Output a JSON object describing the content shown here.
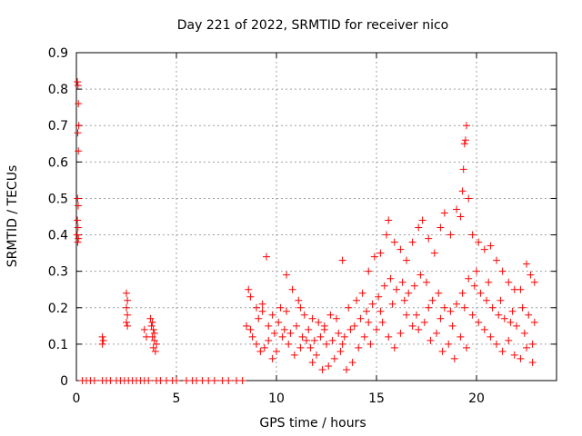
{
  "chart_data": {
    "type": "scatter",
    "title": "Day 221 of 2022, SRMTID for receiver nico",
    "xlabel": "GPS time / hours",
    "ylabel": "SRMTID / TECUs",
    "xlim": [
      0,
      24
    ],
    "ylim": [
      0,
      0.9
    ],
    "xticks": [
      0,
      5,
      10,
      15,
      20
    ],
    "xtick_labels": [
      "0",
      "5",
      "10",
      "15",
      "20"
    ],
    "yticks": [
      0,
      0.1,
      0.2,
      0.3,
      0.4,
      0.5,
      0.6,
      0.7,
      0.8,
      0.9
    ],
    "ytick_labels": [
      "0",
      "0.1",
      "0.2",
      "0.3",
      "0.4",
      "0.5",
      "0.6",
      "0.7",
      "0.8",
      "0.9"
    ],
    "grid": true,
    "marker": "+",
    "series": [
      {
        "name": "SRMTID",
        "color": "#ff0000",
        "points": [
          [
            0.05,
            0.82
          ],
          [
            0.08,
            0.81
          ],
          [
            0.1,
            0.76
          ],
          [
            0.12,
            0.7
          ],
          [
            0.07,
            0.68
          ],
          [
            0.1,
            0.63
          ],
          [
            0.06,
            0.5
          ],
          [
            0.09,
            0.48
          ],
          [
            0.05,
            0.44
          ],
          [
            0.08,
            0.42
          ],
          [
            0.04,
            0.4
          ],
          [
            0.1,
            0.39
          ],
          [
            0.07,
            0.38
          ],
          [
            0.3,
            0
          ],
          [
            0.5,
            0
          ],
          [
            0.7,
            0
          ],
          [
            0.9,
            0
          ],
          [
            1.3,
            0
          ],
          [
            1.5,
            0
          ],
          [
            1.7,
            0
          ],
          [
            2.0,
            0
          ],
          [
            2.2,
            0
          ],
          [
            2.4,
            0
          ],
          [
            2.6,
            0
          ],
          [
            2.8,
            0
          ],
          [
            3.0,
            0
          ],
          [
            3.2,
            0
          ],
          [
            3.4,
            0
          ],
          [
            3.6,
            0
          ],
          [
            4.0,
            0
          ],
          [
            4.2,
            0
          ],
          [
            4.5,
            0
          ],
          [
            4.8,
            0
          ],
          [
            5.0,
            0
          ],
          [
            5.5,
            0
          ],
          [
            5.8,
            0
          ],
          [
            6.0,
            0
          ],
          [
            6.3,
            0
          ],
          [
            6.6,
            0
          ],
          [
            6.9,
            0
          ],
          [
            7.3,
            0
          ],
          [
            7.6,
            0
          ],
          [
            8.0,
            0
          ],
          [
            8.3,
            0
          ],
          [
            1.3,
            0.12
          ],
          [
            1.35,
            0.11
          ],
          [
            1.3,
            0.1
          ],
          [
            2.5,
            0.24
          ],
          [
            2.55,
            0.22
          ],
          [
            2.5,
            0.2
          ],
          [
            2.55,
            0.18
          ],
          [
            2.5,
            0.16
          ],
          [
            2.55,
            0.15
          ],
          [
            3.4,
            0.14
          ],
          [
            3.5,
            0.12
          ],
          [
            3.7,
            0.17
          ],
          [
            3.8,
            0.16
          ],
          [
            3.75,
            0.15
          ],
          [
            3.85,
            0.14
          ],
          [
            3.9,
            0.13
          ],
          [
            3.8,
            0.12
          ],
          [
            3.9,
            0.11
          ],
          [
            4.0,
            0.1
          ],
          [
            3.85,
            0.09
          ],
          [
            3.95,
            0.08
          ],
          [
            8.6,
            0.25
          ],
          [
            8.7,
            0.23
          ],
          [
            9.0,
            0.2
          ],
          [
            9.3,
            0.19
          ],
          [
            9.5,
            0.34
          ],
          [
            9.8,
            0.18
          ],
          [
            10.2,
            0.2
          ],
          [
            10.5,
            0.29
          ],
          [
            10.8,
            0.25
          ],
          [
            11.1,
            0.22
          ],
          [
            11.4,
            0.18
          ],
          [
            11.8,
            0.17
          ],
          [
            12.1,
            0.16
          ],
          [
            12.4,
            0.15
          ],
          [
            12.7,
            0.18
          ],
          [
            13.0,
            0.17
          ],
          [
            13.3,
            0.33
          ],
          [
            13.6,
            0.2
          ],
          [
            14.0,
            0.22
          ],
          [
            14.3,
            0.24
          ],
          [
            14.6,
            0.3
          ],
          [
            14.9,
            0.34
          ],
          [
            15.2,
            0.35
          ],
          [
            15.5,
            0.4
          ],
          [
            15.6,
            0.44
          ],
          [
            15.9,
            0.38
          ],
          [
            16.2,
            0.36
          ],
          [
            16.5,
            0.33
          ],
          [
            16.8,
            0.38
          ],
          [
            17.1,
            0.42
          ],
          [
            17.3,
            0.44
          ],
          [
            17.6,
            0.39
          ],
          [
            17.9,
            0.35
          ],
          [
            18.2,
            0.42
          ],
          [
            18.4,
            0.46
          ],
          [
            18.7,
            0.4
          ],
          [
            19.0,
            0.47
          ],
          [
            19.2,
            0.45
          ],
          [
            19.3,
            0.52
          ],
          [
            19.35,
            0.58
          ],
          [
            19.4,
            0.65
          ],
          [
            19.45,
            0.66
          ],
          [
            19.5,
            0.7
          ],
          [
            19.6,
            0.5
          ],
          [
            19.8,
            0.4
          ],
          [
            20.1,
            0.38
          ],
          [
            20.4,
            0.36
          ],
          [
            20.7,
            0.37
          ],
          [
            21.0,
            0.33
          ],
          [
            21.3,
            0.3
          ],
          [
            21.6,
            0.27
          ],
          [
            21.9,
            0.25
          ],
          [
            22.2,
            0.25
          ],
          [
            22.5,
            0.32
          ],
          [
            22.7,
            0.29
          ],
          [
            22.9,
            0.27
          ],
          [
            8.5,
            0.15
          ],
          [
            8.8,
            0.12
          ],
          [
            9.0,
            0.1
          ],
          [
            9.2,
            0.08
          ],
          [
            9.4,
            0.09
          ],
          [
            9.6,
            0.11
          ],
          [
            9.8,
            0.06
          ],
          [
            10.0,
            0.08
          ],
          [
            10.3,
            0.12
          ],
          [
            10.6,
            0.1
          ],
          [
            10.9,
            0.07
          ],
          [
            11.2,
            0.09
          ],
          [
            11.5,
            0.11
          ],
          [
            11.8,
            0.05
          ],
          [
            12.0,
            0.07
          ],
          [
            12.3,
            0.03
          ],
          [
            12.6,
            0.04
          ],
          [
            12.9,
            0.06
          ],
          [
            13.2,
            0.08
          ],
          [
            13.5,
            0.03
          ],
          [
            13.8,
            0.05
          ],
          [
            14.1,
            0.09
          ],
          [
            14.4,
            0.12
          ],
          [
            14.7,
            0.1
          ],
          [
            15.0,
            0.14
          ],
          [
            15.3,
            0.16
          ],
          [
            15.6,
            0.12
          ],
          [
            15.9,
            0.09
          ],
          [
            16.2,
            0.13
          ],
          [
            16.5,
            0.18
          ],
          [
            16.8,
            0.15
          ],
          [
            17.1,
            0.14
          ],
          [
            17.4,
            0.16
          ],
          [
            17.7,
            0.11
          ],
          [
            18.0,
            0.13
          ],
          [
            18.3,
            0.08
          ],
          [
            18.6,
            0.1
          ],
          [
            18.9,
            0.06
          ],
          [
            19.2,
            0.12
          ],
          [
            19.5,
            0.09
          ],
          [
            19.8,
            0.18
          ],
          [
            20.1,
            0.16
          ],
          [
            20.4,
            0.14
          ],
          [
            20.7,
            0.12
          ],
          [
            21.0,
            0.1
          ],
          [
            21.3,
            0.08
          ],
          [
            21.6,
            0.11
          ],
          [
            21.9,
            0.07
          ],
          [
            22.2,
            0.06
          ],
          [
            22.5,
            0.09
          ],
          [
            22.8,
            0.05
          ],
          [
            8.7,
            0.14
          ],
          [
            9.1,
            0.17
          ],
          [
            9.6,
            0.15
          ],
          [
            10.1,
            0.16
          ],
          [
            10.4,
            0.14
          ],
          [
            10.7,
            0.13
          ],
          [
            11.0,
            0.15
          ],
          [
            11.3,
            0.12
          ],
          [
            11.6,
            0.14
          ],
          [
            11.9,
            0.11
          ],
          [
            12.2,
            0.12
          ],
          [
            12.5,
            0.1
          ],
          [
            12.8,
            0.11
          ],
          [
            13.1,
            0.13
          ],
          [
            13.4,
            0.12
          ],
          [
            13.7,
            0.14
          ],
          [
            14.2,
            0.17
          ],
          [
            14.5,
            0.19
          ],
          [
            14.8,
            0.21
          ],
          [
            15.1,
            0.23
          ],
          [
            15.4,
            0.26
          ],
          [
            15.7,
            0.28
          ],
          [
            16.0,
            0.25
          ],
          [
            16.3,
            0.27
          ],
          [
            16.6,
            0.24
          ],
          [
            16.9,
            0.26
          ],
          [
            17.2,
            0.29
          ],
          [
            17.5,
            0.27
          ],
          [
            17.8,
            0.22
          ],
          [
            18.1,
            0.24
          ],
          [
            18.4,
            0.2
          ],
          [
            18.7,
            0.19
          ],
          [
            19.0,
            0.21
          ],
          [
            19.3,
            0.24
          ],
          [
            19.6,
            0.28
          ],
          [
            19.9,
            0.26
          ],
          [
            20.2,
            0.24
          ],
          [
            20.5,
            0.22
          ],
          [
            20.8,
            0.2
          ],
          [
            21.1,
            0.18
          ],
          [
            21.4,
            0.17
          ],
          [
            21.7,
            0.16
          ],
          [
            22.0,
            0.15
          ],
          [
            22.3,
            0.2
          ],
          [
            22.6,
            0.18
          ],
          [
            22.9,
            0.16
          ],
          [
            9.3,
            0.21
          ],
          [
            9.9,
            0.13
          ],
          [
            10.5,
            0.19
          ],
          [
            11.2,
            0.2
          ],
          [
            11.7,
            0.09
          ],
          [
            12.4,
            0.14
          ],
          [
            13.3,
            0.1
          ],
          [
            13.9,
            0.15
          ],
          [
            14.6,
            0.16
          ],
          [
            15.2,
            0.19
          ],
          [
            15.8,
            0.21
          ],
          [
            16.4,
            0.22
          ],
          [
            17.0,
            0.18
          ],
          [
            17.6,
            0.2
          ],
          [
            18.2,
            0.17
          ],
          [
            18.8,
            0.15
          ],
          [
            19.4,
            0.2
          ],
          [
            20.0,
            0.3
          ],
          [
            20.6,
            0.27
          ],
          [
            21.2,
            0.22
          ],
          [
            21.8,
            0.19
          ],
          [
            22.4,
            0.13
          ],
          [
            22.8,
            0.1
          ]
        ]
      }
    ]
  }
}
